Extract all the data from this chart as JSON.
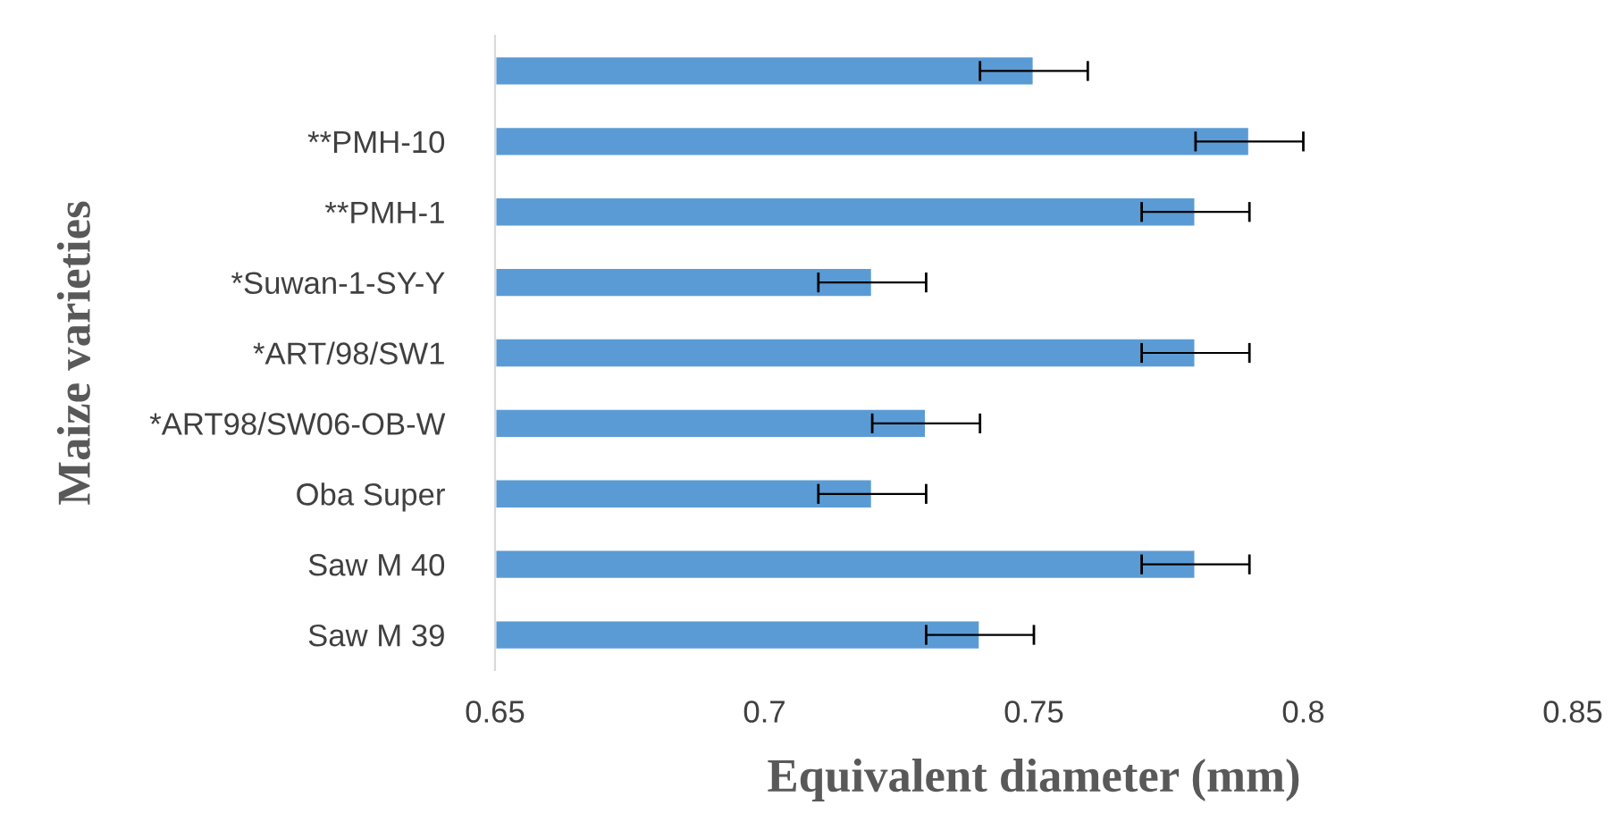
{
  "chart_data": {
    "type": "bar",
    "orientation": "horizontal",
    "xlabel": "Equivalent diameter (mm)",
    "ylabel": "Maize varieties",
    "categories": [
      null,
      "**PMH-10",
      "**PMH-1",
      "*Suwan-1-SY-Y",
      "*ART/98/SW1",
      "*ART98/SW06-OB-W",
      "Oba Super",
      "Saw M 40",
      "Saw M 39"
    ],
    "values": [
      0.75,
      0.79,
      0.78,
      0.72,
      0.78,
      0.73,
      0.72,
      0.78,
      0.74
    ],
    "errors": [
      0.01,
      0.01,
      0.01,
      0.01,
      0.01,
      0.01,
      0.01,
      0.01,
      0.01
    ],
    "color": "#5b9bd5",
    "xlim": [
      0.65,
      0.85
    ],
    "xticks": [
      0.65,
      0.7,
      0.75,
      0.8,
      0.85
    ],
    "grid": false,
    "legend": false
  }
}
